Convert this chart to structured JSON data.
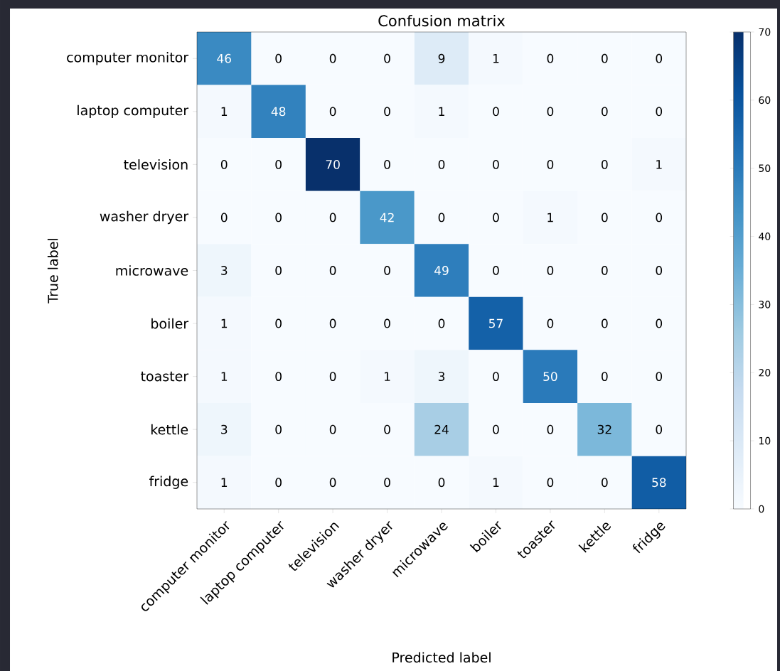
{
  "chart_data": {
    "type": "heatmap",
    "title": "Confusion matrix",
    "xlabel": "Predicted label",
    "ylabel": "True label",
    "categories": [
      "computer monitor",
      "laptop computer",
      "television",
      "washer dryer",
      "microwave",
      "boiler",
      "toaster",
      "kettle",
      "fridge"
    ],
    "y_categories": [
      "computer monitor",
      "laptop computer",
      "television",
      "washer dryer",
      "microwave",
      "boiler",
      "toaster",
      "kettle",
      "fridge"
    ],
    "cells": [
      [
        46,
        0,
        0,
        0,
        9,
        1,
        0,
        0,
        0
      ],
      [
        1,
        48,
        0,
        0,
        1,
        0,
        0,
        0,
        0
      ],
      [
        0,
        0,
        70,
        0,
        0,
        0,
        0,
        0,
        1
      ],
      [
        0,
        0,
        0,
        42,
        0,
        0,
        1,
        0,
        0
      ],
      [
        3,
        0,
        0,
        0,
        49,
        0,
        0,
        0,
        0
      ],
      [
        1,
        0,
        0,
        0,
        0,
        57,
        0,
        0,
        0
      ],
      [
        1,
        0,
        0,
        1,
        3,
        0,
        50,
        0,
        0
      ],
      [
        3,
        0,
        0,
        0,
        24,
        0,
        0,
        32,
        0
      ],
      [
        1,
        0,
        0,
        0,
        0,
        1,
        0,
        0,
        58
      ]
    ],
    "clim": [
      0,
      70
    ],
    "cticks": [
      0,
      10,
      20,
      30,
      40,
      50,
      60,
      70
    ],
    "data_labels": true
  }
}
